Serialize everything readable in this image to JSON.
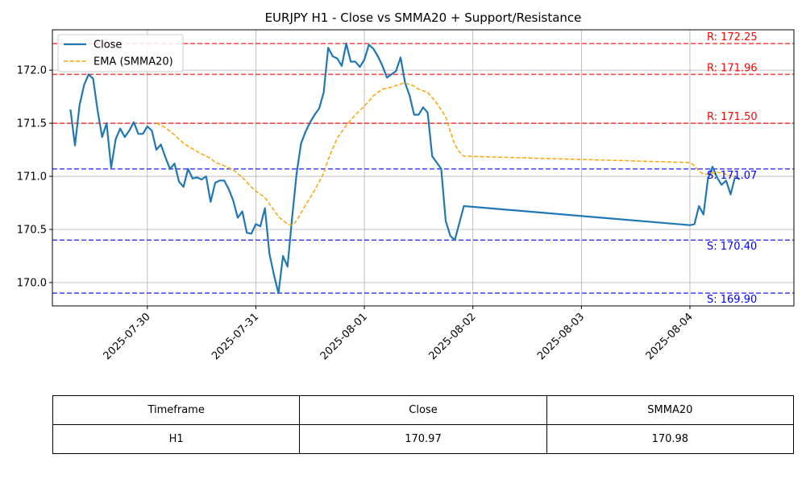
{
  "chart_data": {
    "type": "line",
    "title": "EURJPY H1 - Close vs SMMA20 + Support/Resistance",
    "xlabel": "",
    "ylabel": "",
    "x_range": [
      "2025-07-29 03:00",
      "2025-08-04 23:00"
    ],
    "ylim": [
      169.78,
      172.38
    ],
    "x_ticks": [
      "2025-07-30",
      "2025-07-31",
      "2025-08-01",
      "2025-08-02",
      "2025-08-03",
      "2025-08-04"
    ],
    "y_ticks": [
      "170.0",
      "170.5",
      "171.0",
      "171.5",
      "172.0"
    ],
    "grid": true,
    "legend_position": "top-left",
    "series": [
      {
        "name": "Close",
        "color": "#1f77b4",
        "style": "solid",
        "points": [
          [
            "2025-07-29 07:00",
            171.63
          ],
          [
            "2025-07-29 08:00",
            171.29
          ],
          [
            "2025-07-29 09:00",
            171.67
          ],
          [
            "2025-07-29 10:00",
            171.86
          ],
          [
            "2025-07-29 11:00",
            171.96
          ],
          [
            "2025-07-29 12:00",
            171.92
          ],
          [
            "2025-07-29 13:00",
            171.62
          ],
          [
            "2025-07-29 14:00",
            171.37
          ],
          [
            "2025-07-29 15:00",
            171.5
          ],
          [
            "2025-07-29 16:00",
            171.08
          ],
          [
            "2025-07-29 17:00",
            171.35
          ],
          [
            "2025-07-29 18:00",
            171.45
          ],
          [
            "2025-07-29 19:00",
            171.37
          ],
          [
            "2025-07-29 20:00",
            171.43
          ],
          [
            "2025-07-29 21:00",
            171.51
          ],
          [
            "2025-07-29 22:00",
            171.4
          ],
          [
            "2025-07-29 23:00",
            171.4
          ],
          [
            "2025-07-30 00:00",
            171.47
          ],
          [
            "2025-07-30 01:00",
            171.43
          ],
          [
            "2025-07-30 02:00",
            171.25
          ],
          [
            "2025-07-30 03:00",
            171.3
          ],
          [
            "2025-07-30 04:00",
            171.18
          ],
          [
            "2025-07-30 05:00",
            171.07
          ],
          [
            "2025-07-30 06:00",
            171.12
          ],
          [
            "2025-07-30 07:00",
            170.95
          ],
          [
            "2025-07-30 08:00",
            170.9
          ],
          [
            "2025-07-30 09:00",
            171.07
          ],
          [
            "2025-07-30 10:00",
            170.98
          ],
          [
            "2025-07-30 11:00",
            170.99
          ],
          [
            "2025-07-30 12:00",
            170.97
          ],
          [
            "2025-07-30 13:00",
            171.0
          ],
          [
            "2025-07-30 14:00",
            170.76
          ],
          [
            "2025-07-30 15:00",
            170.94
          ],
          [
            "2025-07-30 16:00",
            170.96
          ],
          [
            "2025-07-30 17:00",
            170.96
          ],
          [
            "2025-07-30 18:00",
            170.88
          ],
          [
            "2025-07-30 19:00",
            170.77
          ],
          [
            "2025-07-30 20:00",
            170.61
          ],
          [
            "2025-07-30 21:00",
            170.67
          ],
          [
            "2025-07-30 22:00",
            170.47
          ],
          [
            "2025-07-30 23:00",
            170.46
          ],
          [
            "2025-07-31 00:00",
            170.55
          ],
          [
            "2025-07-31 01:00",
            170.53
          ],
          [
            "2025-07-31 02:00",
            170.7
          ],
          [
            "2025-07-31 03:00",
            170.27
          ],
          [
            "2025-07-31 04:00",
            170.07
          ],
          [
            "2025-07-31 05:00",
            169.9
          ],
          [
            "2025-07-31 06:00",
            170.25
          ],
          [
            "2025-07-31 07:00",
            170.15
          ],
          [
            "2025-07-31 08:00",
            170.6
          ],
          [
            "2025-07-31 09:00",
            171.02
          ],
          [
            "2025-07-31 10:00",
            171.31
          ],
          [
            "2025-07-31 11:00",
            171.42
          ],
          [
            "2025-07-31 12:00",
            171.51
          ],
          [
            "2025-07-31 13:00",
            171.58
          ],
          [
            "2025-07-31 14:00",
            171.64
          ],
          [
            "2025-07-31 15:00",
            171.79
          ],
          [
            "2025-07-31 16:00",
            172.21
          ],
          [
            "2025-07-31 17:00",
            172.13
          ],
          [
            "2025-07-31 18:00",
            172.11
          ],
          [
            "2025-07-31 19:00",
            172.04
          ],
          [
            "2025-07-31 20:00",
            172.25
          ],
          [
            "2025-07-31 21:00",
            172.08
          ],
          [
            "2025-07-31 22:00",
            172.08
          ],
          [
            "2025-07-31 23:00",
            172.03
          ],
          [
            "2025-08-01 00:00",
            172.1
          ],
          [
            "2025-08-01 01:00",
            172.24
          ],
          [
            "2025-08-01 02:00",
            172.2
          ],
          [
            "2025-08-01 03:00",
            172.13
          ],
          [
            "2025-08-01 04:00",
            172.04
          ],
          [
            "2025-08-01 05:00",
            171.93
          ],
          [
            "2025-08-01 06:00",
            171.96
          ],
          [
            "2025-08-01 07:00",
            171.99
          ],
          [
            "2025-08-01 08:00",
            172.12
          ],
          [
            "2025-08-01 09:00",
            171.88
          ],
          [
            "2025-08-01 10:00",
            171.76
          ],
          [
            "2025-08-01 11:00",
            171.58
          ],
          [
            "2025-08-01 12:00",
            171.58
          ],
          [
            "2025-08-01 13:00",
            171.65
          ],
          [
            "2025-08-01 14:00",
            171.6
          ],
          [
            "2025-08-01 15:00",
            171.19
          ],
          [
            "2025-08-01 16:00",
            171.13
          ],
          [
            "2025-08-01 17:00",
            171.07
          ],
          [
            "2025-08-01 18:00",
            170.58
          ],
          [
            "2025-08-01 19:00",
            170.44
          ],
          [
            "2025-08-01 20:00",
            170.4
          ],
          [
            "2025-08-01 21:00",
            170.56
          ],
          [
            "2025-08-01 22:00",
            170.72
          ],
          [
            "2025-08-04 00:00",
            170.54
          ],
          [
            "2025-08-04 01:00",
            170.55
          ],
          [
            "2025-08-04 02:00",
            170.72
          ],
          [
            "2025-08-04 03:00",
            170.64
          ],
          [
            "2025-08-04 04:00",
            170.98
          ],
          [
            "2025-08-04 05:00",
            171.09
          ],
          [
            "2025-08-04 06:00",
            170.99
          ],
          [
            "2025-08-04 07:00",
            170.92
          ],
          [
            "2025-08-04 08:00",
            170.96
          ],
          [
            "2025-08-04 09:00",
            170.83
          ],
          [
            "2025-08-04 10:00",
            171.0
          ],
          [
            "2025-08-04 11:00",
            170.97
          ]
        ]
      },
      {
        "name": "EMA (SMMA20)",
        "color": "#ffa500",
        "style": "dashed",
        "points": [
          [
            "2025-07-30 02:00",
            171.5
          ],
          [
            "2025-07-30 04:00",
            171.46
          ],
          [
            "2025-07-30 06:00",
            171.39
          ],
          [
            "2025-07-30 08:00",
            171.31
          ],
          [
            "2025-07-30 10:00",
            171.26
          ],
          [
            "2025-07-30 12:00",
            171.21
          ],
          [
            "2025-07-30 14:00",
            171.17
          ],
          [
            "2025-07-30 15:00",
            171.13
          ],
          [
            "2025-07-30 17:00",
            171.1
          ],
          [
            "2025-07-30 19:00",
            171.06
          ],
          [
            "2025-07-30 21:00",
            170.99
          ],
          [
            "2025-07-30 23:00",
            170.9
          ],
          [
            "2025-07-31 00:00",
            170.86
          ],
          [
            "2025-07-31 02:00",
            170.8
          ],
          [
            "2025-07-31 04:00",
            170.68
          ],
          [
            "2025-07-31 05:00",
            170.62
          ],
          [
            "2025-07-31 07:00",
            170.55
          ],
          [
            "2025-07-31 08:00",
            170.54
          ],
          [
            "2025-07-31 09:00",
            170.58
          ],
          [
            "2025-07-31 11:00",
            170.73
          ],
          [
            "2025-07-31 13:00",
            170.87
          ],
          [
            "2025-07-31 15:00",
            171.03
          ],
          [
            "2025-07-31 16:00",
            171.16
          ],
          [
            "2025-07-31 18:00",
            171.36
          ],
          [
            "2025-07-31 20:00",
            171.48
          ],
          [
            "2025-07-31 22:00",
            171.58
          ],
          [
            "2025-08-01 00:00",
            171.66
          ],
          [
            "2025-08-01 02:00",
            171.76
          ],
          [
            "2025-08-01 04:00",
            171.82
          ],
          [
            "2025-08-01 06:00",
            171.84
          ],
          [
            "2025-08-01 08:00",
            171.87
          ],
          [
            "2025-08-01 09:00",
            171.88
          ],
          [
            "2025-08-01 11:00",
            171.85
          ],
          [
            "2025-08-01 12:00",
            171.82
          ],
          [
            "2025-08-01 14:00",
            171.79
          ],
          [
            "2025-08-01 16:00",
            171.69
          ],
          [
            "2025-08-01 18:00",
            171.56
          ],
          [
            "2025-08-01 19:00",
            171.42
          ],
          [
            "2025-08-01 20:00",
            171.3
          ],
          [
            "2025-08-01 21:00",
            171.23
          ],
          [
            "2025-08-01 22:00",
            171.19
          ],
          [
            "2025-08-04 00:00",
            171.13
          ],
          [
            "2025-08-04 01:00",
            171.1
          ],
          [
            "2025-08-04 02:00",
            171.05
          ],
          [
            "2025-08-04 03:00",
            171.02
          ],
          [
            "2025-08-04 04:00",
            171.02
          ],
          [
            "2025-08-04 06:00",
            171.04
          ],
          [
            "2025-08-04 08:00",
            171.02
          ],
          [
            "2025-08-04 10:00",
            170.99
          ],
          [
            "2025-08-04 11:00",
            170.98
          ]
        ]
      }
    ],
    "reference_lines": [
      {
        "kind": "resistance",
        "value": 172.25,
        "label": "R: 172.25",
        "color": "#ff0000"
      },
      {
        "kind": "resistance",
        "value": 171.96,
        "label": "R: 171.96",
        "color": "#ff0000"
      },
      {
        "kind": "resistance",
        "value": 171.5,
        "label": "R: 171.50",
        "color": "#ff0000"
      },
      {
        "kind": "support",
        "value": 171.07,
        "label": "S: 171.07",
        "color": "#0000ff"
      },
      {
        "kind": "support",
        "value": 170.4,
        "label": "S: 170.40",
        "color": "#0000ff"
      },
      {
        "kind": "support",
        "value": 169.9,
        "label": "S: 169.90",
        "color": "#0000ff"
      }
    ]
  },
  "table": {
    "headers": [
      "Timeframe",
      "Close",
      "SMMA20"
    ],
    "rows": [
      [
        "H1",
        "170.97",
        "170.98"
      ]
    ]
  }
}
